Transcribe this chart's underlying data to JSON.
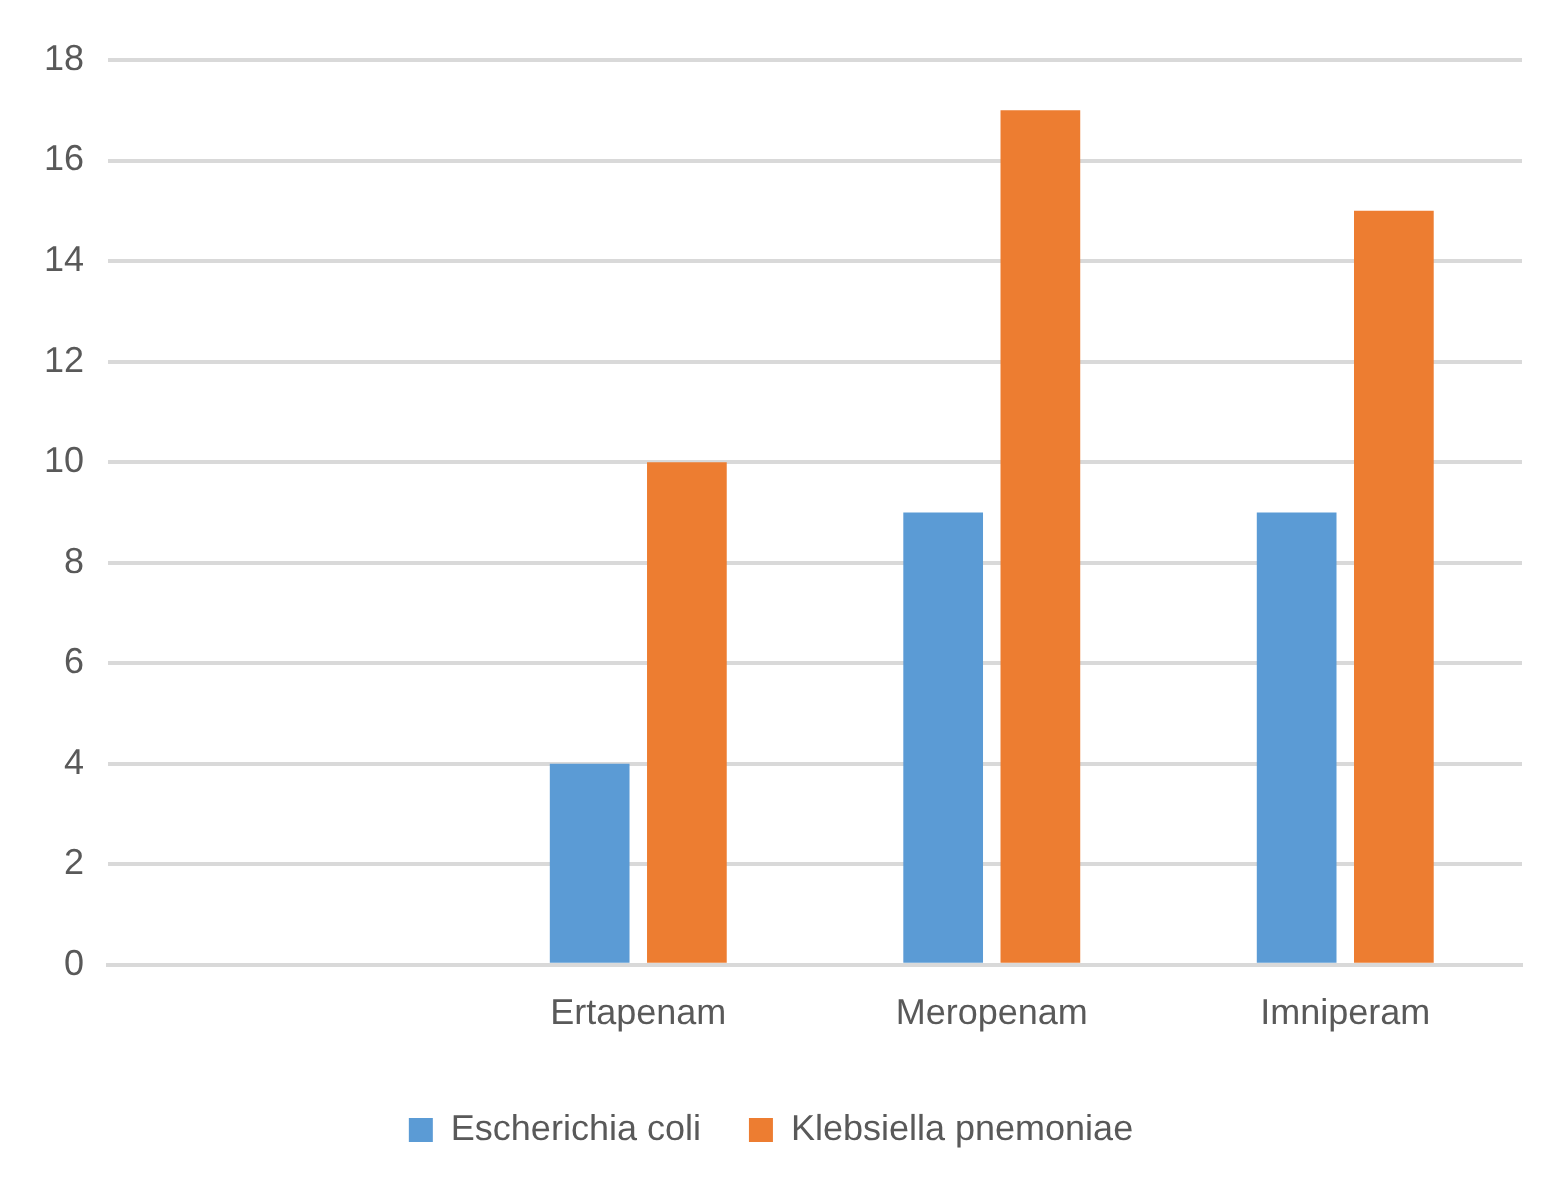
{
  "chart_data": {
    "type": "bar",
    "categories": [
      null,
      "Ertapenam",
      "Meropenam",
      "Imniperam"
    ],
    "series": [
      {
        "name": "Escherichia coli",
        "color": "#5b9bd5",
        "values": [
          null,
          4,
          9,
          9
        ]
      },
      {
        "name": "Klebsiella pnemoniae",
        "color": "#ed7d31",
        "values": [
          null,
          10,
          17,
          15
        ]
      }
    ],
    "ylim": [
      0,
      18
    ],
    "yticks": [
      0,
      2,
      4,
      6,
      8,
      10,
      12,
      14,
      16,
      18
    ],
    "grid": "y",
    "legend": "bottom"
  }
}
